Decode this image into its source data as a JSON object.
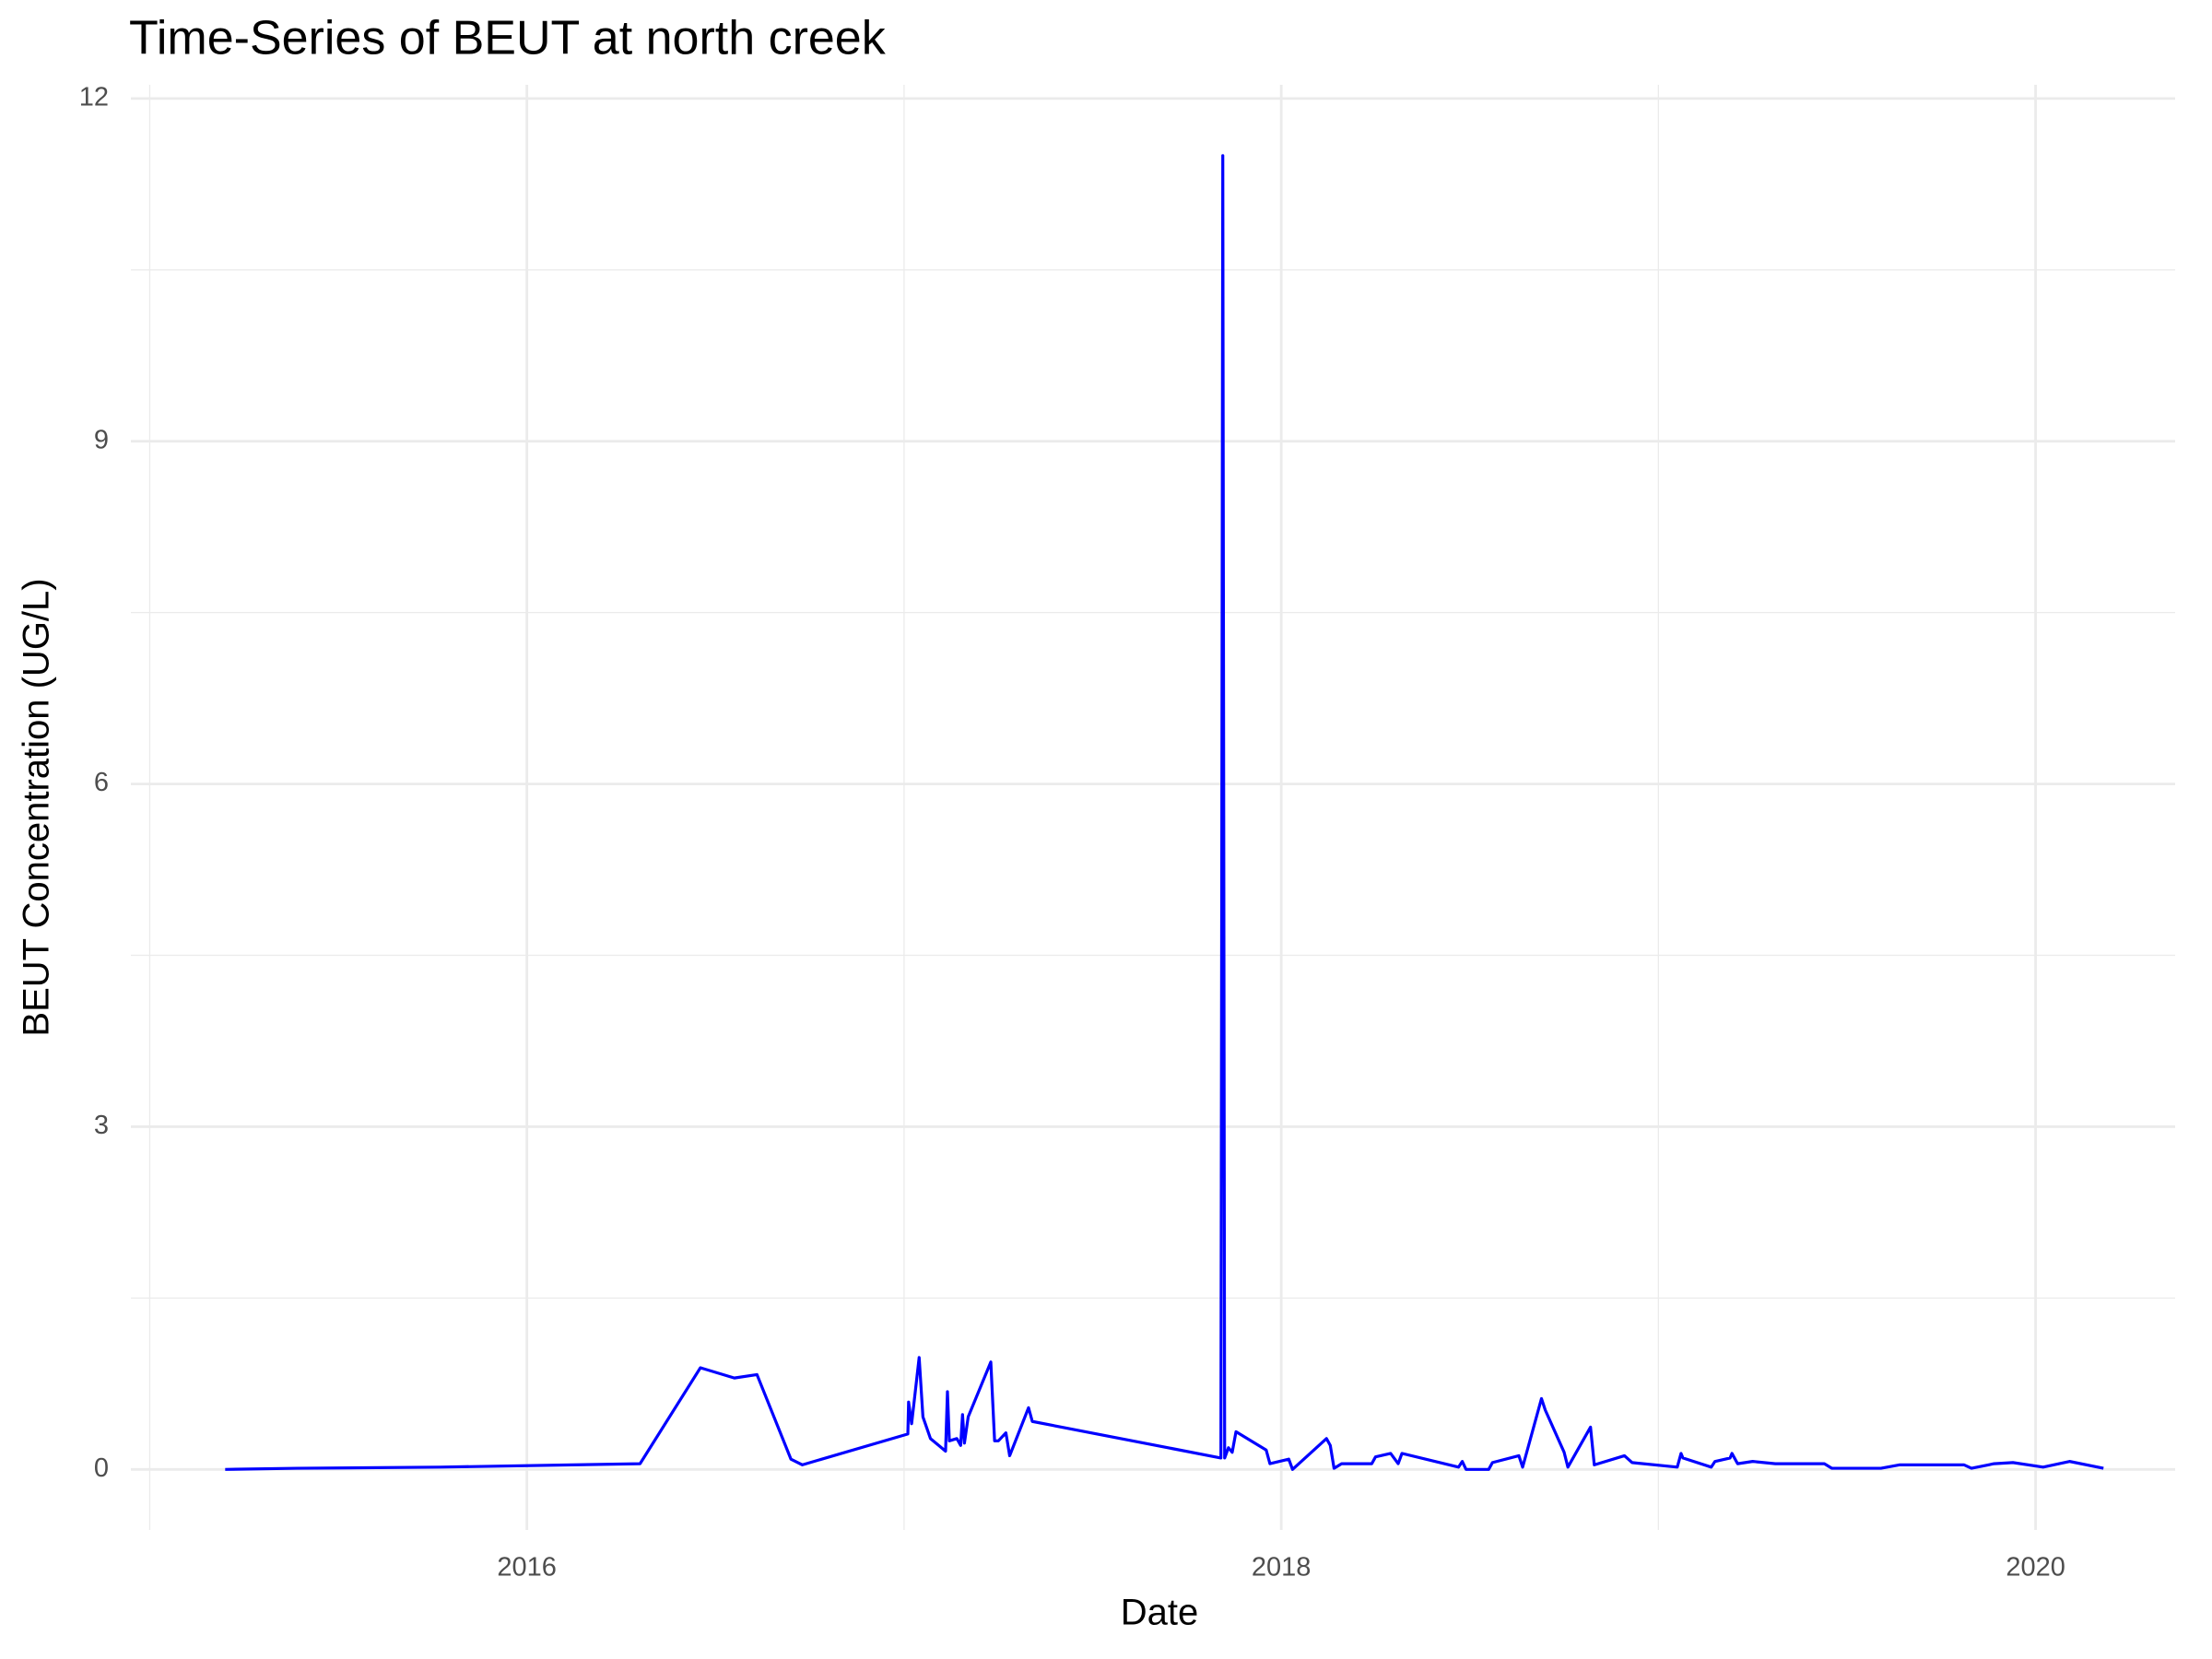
{
  "chart_data": {
    "type": "line",
    "title": "Time-Series of BEUT at north creek",
    "x_label": "Date",
    "y_label": "BEUT Concentration (UG/L)",
    "x": [
      2015.2,
      2015.39,
      2015.77,
      2016.12,
      2016.3,
      2016.46,
      2016.55,
      2016.61,
      2016.7,
      2016.73,
      2017.01,
      2017.012,
      2017.02,
      2017.03,
      2017.04,
      2017.05,
      2017.07,
      2017.11,
      2017.115,
      2017.12,
      2017.14,
      2017.15,
      2017.155,
      2017.16,
      2017.17,
      2017.23,
      2017.24,
      2017.25,
      2017.27,
      2017.28,
      2017.33,
      2017.34,
      2017.84,
      2017.845,
      2017.85,
      2017.86,
      2017.87,
      2017.88,
      2017.96,
      2017.97,
      2018.02,
      2018.03,
      2018.12,
      2018.13,
      2018.14,
      2018.16,
      2018.24,
      2018.25,
      2018.29,
      2018.31,
      2018.32,
      2018.47,
      2018.48,
      2018.49,
      2018.55,
      2018.56,
      2018.63,
      2018.64,
      2018.69,
      2018.7,
      2018.75,
      2018.76,
      2018.82,
      2018.83,
      2018.91,
      2018.93,
      2019.05,
      2019.06,
      2019.065,
      2019.14,
      2019.15,
      2019.19,
      2019.195,
      2019.21,
      2019.25,
      2019.31,
      2019.44,
      2019.46,
      2019.59,
      2019.64,
      2019.81,
      2019.83,
      2019.89,
      2019.94,
      2020.02,
      2020.09,
      2020.18
    ],
    "series": [
      {
        "name": "BEUT",
        "color": "#0000ff",
        "values": [
          0,
          0.01,
          0.02,
          0.04,
          0.05,
          0.89,
          0.8,
          0.83,
          0.09,
          0.04,
          0.31,
          0.59,
          0.4,
          0.69,
          0.98,
          0.46,
          0.27,
          0.16,
          0.68,
          0.25,
          0.27,
          0.21,
          0.48,
          0.23,
          0.46,
          0.94,
          0.25,
          0.25,
          0.32,
          0.12,
          0.54,
          0.42,
          0.1,
          11.5,
          0.1,
          0.19,
          0.15,
          0.33,
          0.17,
          0.05,
          0.09,
          0,
          0.27,
          0.21,
          0.01,
          0.05,
          0.05,
          0.11,
          0.14,
          0.05,
          0.14,
          0.02,
          0.07,
          0,
          0,
          0.06,
          0.12,
          0.02,
          0.62,
          0.52,
          0.15,
          0.02,
          0.37,
          0.04,
          0.12,
          0.06,
          0.02,
          0.14,
          0.1,
          0.02,
          0.07,
          0.1,
          0.14,
          0.05,
          0.07,
          0.05,
          0.05,
          0.01,
          0.01,
          0.04,
          0.04,
          0.01,
          0.05,
          0.06,
          0.02,
          0.07,
          0.01
        ]
      }
    ],
    "xlim": [
      2014.95,
      2020.37
    ],
    "ylim": [
      -0.53,
      12.12
    ],
    "xticks": [
      2016,
      2018,
      2020
    ],
    "yticks": [
      0,
      3,
      6,
      9,
      12
    ],
    "minor_xticks": [
      2015,
      2017,
      2019
    ],
    "minor_yticks": [
      1.5,
      4.5,
      7.5,
      10.5
    ],
    "grid": true
  }
}
